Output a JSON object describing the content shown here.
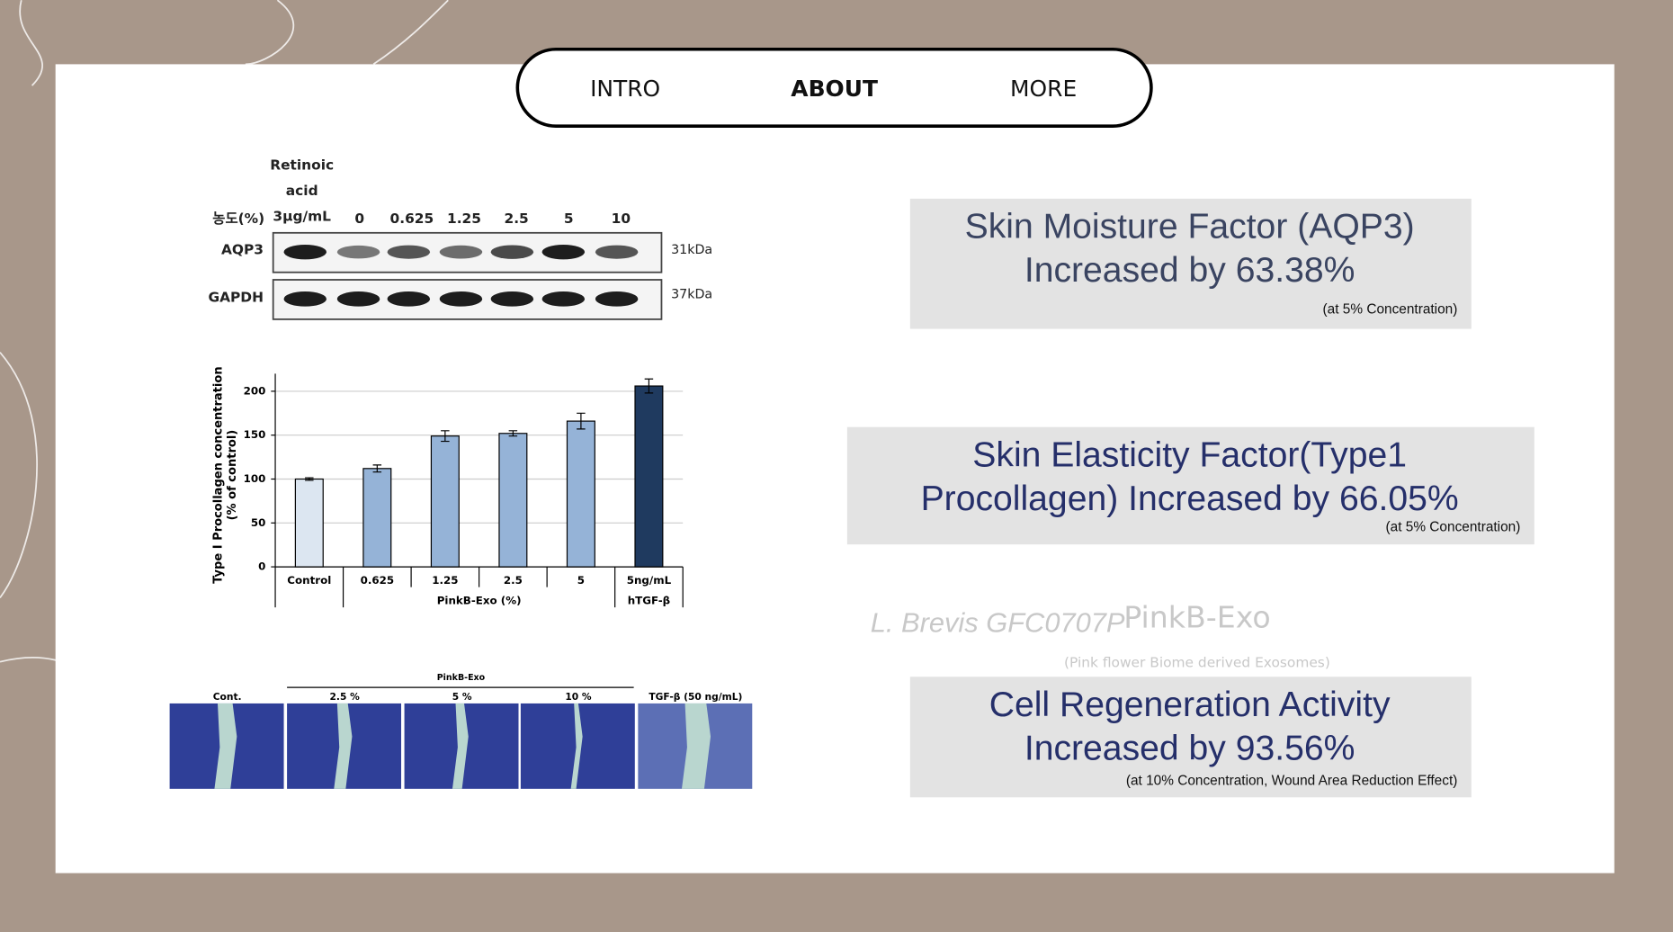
{
  "nav": {
    "items": [
      "INTRO",
      "ABOUT",
      "MORE"
    ],
    "active": 1
  },
  "western_blot": {
    "treatment_lines": [
      "Retinoic",
      "acid",
      "3μg/mL"
    ],
    "concentration_label": "농도(%)",
    "concentrations": [
      "0",
      "0.625",
      "1.25",
      "2.5",
      "5",
      "10"
    ],
    "rows": [
      {
        "label": "AQP3",
        "size": "31kDa"
      },
      {
        "label": "GAPDH",
        "size": "37kDa"
      }
    ]
  },
  "procollagen_chart": {
    "type": "bar",
    "y_label_lines": [
      "Type I Procollagen concentration",
      "(% of control)"
    ],
    "categories": [
      "Control",
      "0.625",
      "1.25",
      "2.5",
      "5",
      "5ng/mL"
    ],
    "group_labels": [
      "PinkB-Exo (%)",
      "hTGF-β"
    ],
    "values": [
      100,
      112,
      149,
      152,
      166,
      206
    ],
    "errors": [
      1.5,
      4,
      6,
      3,
      9,
      8
    ],
    "colors": [
      "#dce6f1",
      "#95b3d7",
      "#95b3d7",
      "#95b3d7",
      "#95b3d7",
      "#1f3a5f"
    ],
    "ylim": [
      0,
      220
    ],
    "yticks": [
      0,
      50,
      100,
      150,
      200
    ],
    "grid": true
  },
  "wound_assay": {
    "group_label": "PinkB-Exo",
    "labels": [
      "Cont.",
      "2.5 %",
      "5 %",
      "10 %",
      "TGF-β (50 ng/mL)"
    ]
  },
  "stats": [
    {
      "lines": [
        "Skin Moisture Factor (AQP3)",
        "Increased by 63.38%"
      ],
      "note": "(at 5% Concentration)"
    },
    {
      "lines": [
        "Skin Elasticity Factor(Type1",
        "Procollagen) Increased by 66.05%"
      ],
      "note": "(at 5% Concentration)"
    },
    {
      "lines": [
        "Cell Regeneration Activity",
        "Increased by 93.56%"
      ],
      "note": "(at 10% Concentration, Wound Area Reduction Effect)"
    }
  ],
  "watermark": {
    "strain": "L. Brevis GFC0707P",
    "product": "PinkB-Exo",
    "product_note": "(Pink flower Biome derived Exosomes)"
  }
}
